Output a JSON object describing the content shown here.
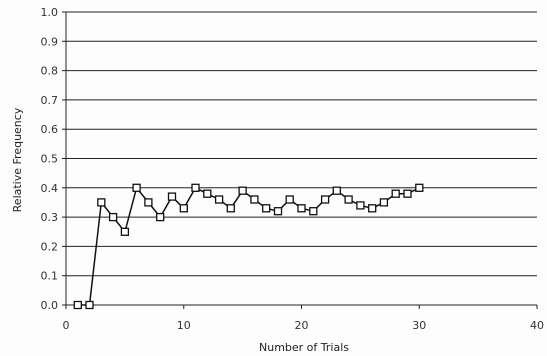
{
  "chart_data": {
    "type": "line",
    "xlabel": "Number of Trials",
    "ylabel": "Relative Frequency",
    "xlim": [
      0,
      40
    ],
    "ylim": [
      0,
      1.0
    ],
    "x_ticks": [
      "0",
      "10",
      "20",
      "30",
      "40"
    ],
    "y_ticks": [
      "0.0",
      "0.1",
      "0.2",
      "0.3",
      "0.4",
      "0.5",
      "0.6",
      "0.7",
      "0.8",
      "0.9",
      "1.0"
    ],
    "grid": "horizontal",
    "marker": "open-square",
    "line_color": "#111111",
    "grid_color": "#222222",
    "series": [
      {
        "x": [
          1,
          2,
          3,
          4,
          5,
          6,
          7,
          8,
          9,
          10,
          11,
          12,
          13,
          14,
          15,
          16,
          17,
          18,
          19,
          20,
          21,
          22,
          23,
          24,
          25,
          26,
          27,
          28,
          29,
          30
        ],
        "y": [
          0.0,
          0.0,
          0.35,
          0.3,
          0.25,
          0.4,
          0.35,
          0.3,
          0.37,
          0.33,
          0.4,
          0.38,
          0.36,
          0.33,
          0.39,
          0.36,
          0.33,
          0.32,
          0.36,
          0.33,
          0.32,
          0.36,
          0.39,
          0.36,
          0.34,
          0.33,
          0.35,
          0.38,
          0.38,
          0.4
        ]
      }
    ]
  }
}
